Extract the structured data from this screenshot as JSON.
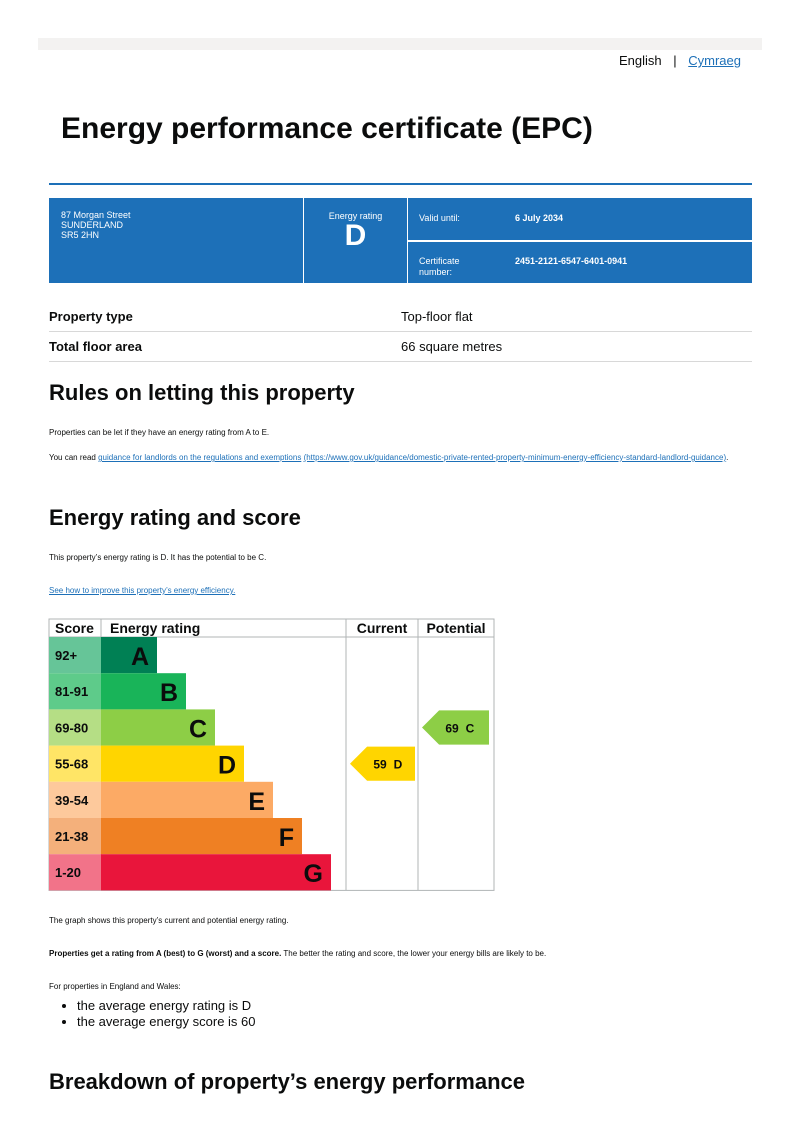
{
  "header": {
    "languages": [
      "English",
      "Cymraeg"
    ]
  },
  "title": "Energy performance certificate (EPC)",
  "summary": {
    "address": [
      "87 Morgan Street",
      "SUNDERLAND",
      "SR5 2HN"
    ],
    "rating_label": "Energy rating",
    "rating": "D",
    "valid_label": "Valid until:",
    "valid": "6 July 2034",
    "cert_label": "Certificate number:",
    "cert": "2451-2121-6547-6401-0941"
  },
  "property": [
    [
      "Property type",
      "Top-floor flat"
    ],
    [
      "Total floor area",
      "66 square metres"
    ]
  ],
  "letting": {
    "heading": "Rules on letting this property",
    "p1": "Properties can be let if they have an energy rating from A to E.",
    "p2_prefix": "You can read ",
    "p2_link": "guidance for landlords on the regulations and exemptions",
    "p2_url": "(https://www.gov.uk/guidance/domestic-private-rented-property-minimum-energy-efficiency-standard-landlord-guidance)",
    "p2_suffix": "."
  },
  "rating_section": {
    "heading": "Energy rating and score",
    "p1": "This property’s energy rating is D. It has the potential to be C.",
    "link": "See how to improve this property’s energy efficiency."
  },
  "chart": {
    "headers": [
      "Score",
      "Energy rating",
      "Current",
      "Potential"
    ],
    "bands": [
      {
        "range": "92+",
        "letter": "A"
      },
      {
        "range": "81-91",
        "letter": "B"
      },
      {
        "range": "69-80",
        "letter": "C"
      },
      {
        "range": "55-68",
        "letter": "D"
      },
      {
        "range": "39-54",
        "letter": "E"
      },
      {
        "range": "21-38",
        "letter": "F"
      },
      {
        "range": "1-20",
        "letter": "G"
      }
    ],
    "current": {
      "score": 59,
      "band": "D"
    },
    "potential": {
      "score": 69,
      "band": "C"
    }
  },
  "notes": {
    "p1": "The graph shows this property’s current and potential energy rating.",
    "p2_bold": "Properties get a rating from A (best) to G (worst) and a score.",
    "p2_rest": " The better the rating and score, the lower your energy bills are likely to be.",
    "p3": "For properties in England and Wales:",
    "bullets": [
      "the average energy rating is D",
      "the average energy score is 60"
    ]
  },
  "breakdown_heading": "Breakdown of property’s energy performance"
}
